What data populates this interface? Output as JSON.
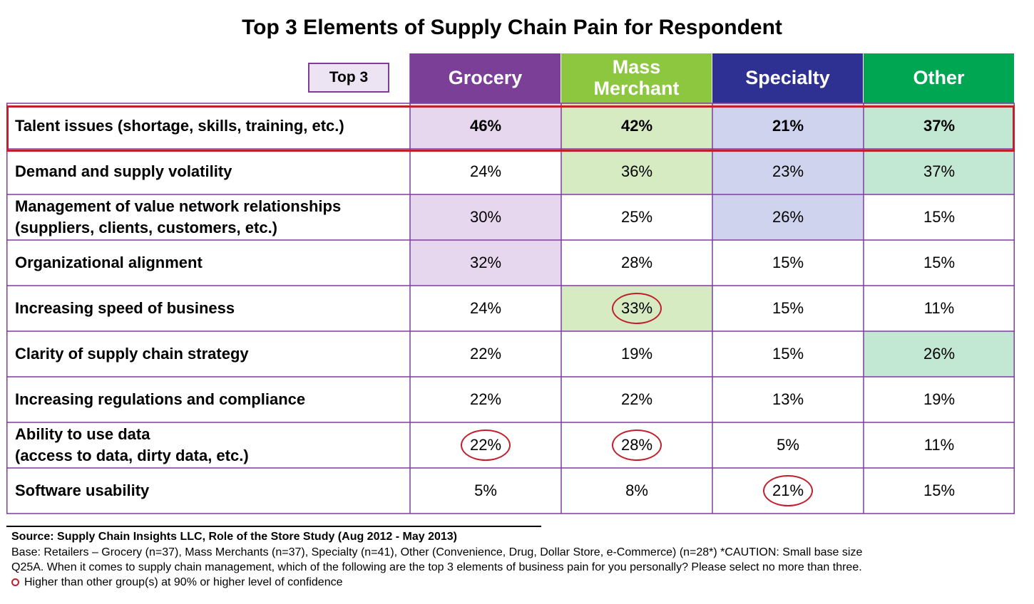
{
  "title": "Top 3 Elements of Supply Chain Pain for Respondent",
  "chart_data": {
    "type": "table",
    "title": "Top 3 Elements of Supply Chain Pain for Respondent",
    "corner_label": "Top 3",
    "columns": [
      {
        "name": "Grocery",
        "color": "#7b3f98",
        "shade": "#e6d6ee"
      },
      {
        "name": "Mass Merchant",
        "color": "#8dc63f",
        "shade": "#d7ebc2"
      },
      {
        "name": "Specialty",
        "color": "#2e3192",
        "shade": "#cfd3ee"
      },
      {
        "name": "Other",
        "color": "#00a651",
        "shade": "#c2e8d4"
      }
    ],
    "rows": [
      {
        "label": "Talent issues (shortage, skills, training, etc.)",
        "values": [
          "46%",
          "42%",
          "21%",
          "37%"
        ],
        "shaded": [
          true,
          true,
          true,
          true
        ],
        "circled": [
          false,
          false,
          false,
          false
        ],
        "highlighted": true
      },
      {
        "label": "Demand and supply volatility",
        "values": [
          "24%",
          "36%",
          "23%",
          "37%"
        ],
        "shaded": [
          false,
          true,
          true,
          true
        ],
        "circled": [
          false,
          false,
          false,
          false
        ],
        "highlighted": false
      },
      {
        "label": "Management of value network relationships\n(suppliers, clients, customers, etc.)",
        "values": [
          "30%",
          "25%",
          "26%",
          "15%"
        ],
        "shaded": [
          true,
          false,
          true,
          false
        ],
        "circled": [
          false,
          false,
          false,
          false
        ],
        "highlighted": false
      },
      {
        "label": "Organizational alignment",
        "values": [
          "32%",
          "28%",
          "15%",
          "15%"
        ],
        "shaded": [
          true,
          false,
          false,
          false
        ],
        "circled": [
          false,
          false,
          false,
          false
        ],
        "highlighted": false
      },
      {
        "label": "Increasing speed of business",
        "values": [
          "24%",
          "33%",
          "15%",
          "11%"
        ],
        "shaded": [
          false,
          true,
          false,
          false
        ],
        "circled": [
          false,
          true,
          false,
          false
        ],
        "highlighted": false
      },
      {
        "label": "Clarity of supply chain strategy",
        "values": [
          "22%",
          "19%",
          "15%",
          "26%"
        ],
        "shaded": [
          false,
          false,
          false,
          true
        ],
        "circled": [
          false,
          false,
          false,
          false
        ],
        "highlighted": false
      },
      {
        "label": "Increasing regulations and compliance",
        "values": [
          "22%",
          "22%",
          "13%",
          "19%"
        ],
        "shaded": [
          false,
          false,
          false,
          false
        ],
        "circled": [
          false,
          false,
          false,
          false
        ],
        "highlighted": false
      },
      {
        "label": "Ability to use data\n(access to data, dirty data, etc.)",
        "values": [
          "22%",
          "28%",
          "5%",
          "11%"
        ],
        "shaded": [
          false,
          false,
          false,
          false
        ],
        "circled": [
          true,
          true,
          false,
          false
        ],
        "highlighted": false
      },
      {
        "label": "Software usability",
        "values": [
          "5%",
          "8%",
          "21%",
          "15%"
        ],
        "shaded": [
          false,
          false,
          false,
          false
        ],
        "circled": [
          false,
          false,
          true,
          false
        ],
        "highlighted": false
      }
    ]
  },
  "colors": {
    "grid": "#7b3f98",
    "circle": "#c0202e"
  },
  "footer": {
    "source": "Source:  Supply Chain Insights LLC, Role of the Store Study (Aug 2012 - May 2013)",
    "base": "Base:  Retailers – Grocery (n=37), Mass Merchants (n=37), Specialty (n=41), Other (Convenience, Drug, Dollar Store, e-Commerce) (n=28*) *CAUTION:  Small base size",
    "question": "Q25A. When it comes to supply chain management, which of the following are the top 3 elements of business pain for you personally? Please select no more than three.",
    "legend": "Higher than other group(s) at 90% or higher level of confidence"
  }
}
